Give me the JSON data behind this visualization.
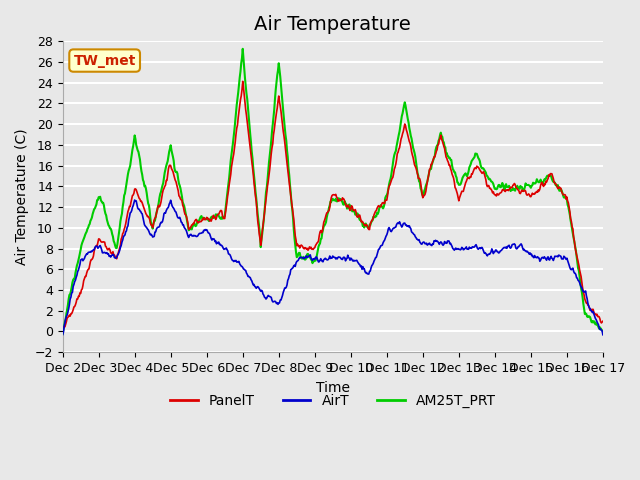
{
  "title": "Air Temperature",
  "ylabel": "Air Temperature (C)",
  "xlabel": "Time",
  "station_label": "TW_met",
  "ylim": [
    -2,
    28
  ],
  "yticks": [
    -2,
    0,
    2,
    4,
    6,
    8,
    10,
    12,
    14,
    16,
    18,
    20,
    22,
    24,
    26,
    28
  ],
  "xtick_labels": [
    "Dec 2",
    "Dec 3",
    "Dec 4",
    "Dec 5",
    "Dec 6",
    "Dec 7",
    "Dec 8",
    "Dec 9",
    "Dec 10",
    "Dec 11",
    "Dec 12",
    "Dec 13",
    "Dec 14",
    "Dec 15",
    "Dec 16",
    "Dec 17"
  ],
  "series_colors": {
    "PanelT": "#dd0000",
    "AirT": "#0000cc",
    "AM25T_PRT": "#00cc00"
  },
  "series_linewidths": {
    "PanelT": 1.2,
    "AirT": 1.2,
    "AM25T_PRT": 1.5
  },
  "plot_bg_color": "#e8e8e8",
  "grid_color": "#ffffff",
  "title_fontsize": 14,
  "legend_fontsize": 10,
  "tick_fontsize": 9
}
